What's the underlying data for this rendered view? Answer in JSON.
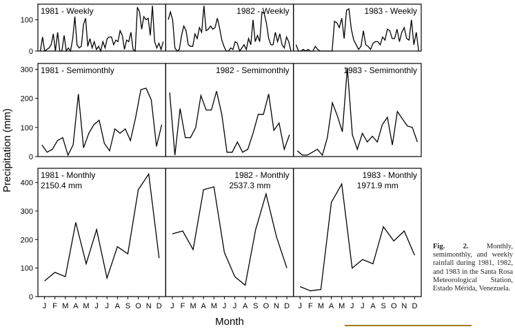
{
  "chart_data": {
    "type": "line",
    "ylabel": "Precipitation (mm)",
    "xlabel": "Month",
    "month_ticks": [
      "J",
      "F",
      "M",
      "A",
      "M",
      "J",
      "J",
      "A",
      "S",
      "O",
      "N",
      "D"
    ],
    "years": [
      "1981",
      "1982",
      "1983"
    ],
    "panels": [
      {
        "id": "weekly",
        "ylim": [
          0,
          150
        ],
        "yticks": [
          0,
          100
        ],
        "labels": [
          "1981 - Weekly",
          "1982 - Weekly",
          "1983 - Weekly"
        ],
        "totals": [
          "",
          "",
          ""
        ],
        "series": [
          {
            "name": "1981",
            "values": [
              0,
              45,
              0,
              5,
              10,
              20,
              55,
              0,
              60,
              0,
              0,
              50,
              0,
              10,
              0,
              40,
              110,
              20,
              10,
              15,
              85,
              105,
              15,
              40,
              10,
              30,
              5,
              15,
              0,
              30,
              10,
              40,
              45,
              45,
              20,
              35,
              30,
              65,
              50,
              5,
              35,
              30,
              60,
              5,
              0,
              140,
              125,
              70,
              110,
              100,
              105,
              50,
              145,
              30,
              10,
              25,
              5,
              30
            ]
          },
          {
            "name": "1982",
            "values": [
              100,
              125,
              100,
              10,
              0,
              5,
              50,
              80,
              65,
              20,
              15,
              15,
              55,
              40,
              75,
              60,
              145,
              65,
              70,
              80,
              70,
              75,
              105,
              75,
              35,
              15,
              0,
              0,
              10,
              5,
              30,
              25,
              0,
              10,
              20,
              5,
              40,
              20,
              100,
              30,
              50,
              30,
              125,
              120,
              90,
              40,
              20,
              20,
              60,
              30,
              55,
              20,
              10,
              45,
              30,
              0
            ]
          },
          {
            "name": "1983",
            "values": [
              20,
              0,
              0,
              5,
              0,
              5,
              0,
              0,
              15,
              5,
              0,
              0,
              0,
              0,
              0,
              0,
              95,
              90,
              75,
              105,
              40,
              130,
              135,
              70,
              35,
              20,
              5,
              15,
              65,
              20,
              15,
              5,
              25,
              30,
              30,
              20,
              45,
              35,
              70,
              65,
              40,
              40,
              70,
              30,
              60,
              75,
              40,
              35,
              100,
              20,
              60,
              0
            ]
          }
        ]
      },
      {
        "id": "semimonthly",
        "ylim": [
          0,
          320
        ],
        "yticks": [
          0,
          100,
          200,
          300
        ],
        "labels": [
          "1981 - Semimonthly",
          "1982 - Semimonthly",
          "1983 - Semimonthly"
        ],
        "totals": [
          "",
          "",
          ""
        ],
        "series": [
          {
            "name": "1981",
            "values": [
              40,
              15,
              25,
              55,
              65,
              5,
              40,
              215,
              30,
              80,
              110,
              125,
              45,
              20,
              95,
              80,
              95,
              55,
              135,
              230,
              235,
              195,
              35,
              110
            ]
          },
          {
            "name": "1982",
            "values": [
              220,
              5,
              165,
              65,
              65,
              100,
              210,
              160,
              160,
              225,
              145,
              15,
              15,
              50,
              15,
              25,
              80,
              145,
              145,
              215,
              90,
              115,
              25,
              75
            ]
          },
          {
            "name": "1983",
            "values": [
              20,
              5,
              5,
              15,
              25,
              5,
              65,
              185,
              140,
              85,
              305,
              75,
              25,
              80,
              50,
              70,
              50,
              110,
              135,
              40,
              155,
              130,
              105,
              100,
              50
            ]
          }
        ]
      },
      {
        "id": "monthly",
        "ylim": [
          0,
          450
        ],
        "yticks": [
          0,
          100,
          200,
          300,
          400
        ],
        "labels": [
          "1981 - Monthly",
          "1982 - Monthly",
          "1983 - Monthly"
        ],
        "totals": [
          "2150.4 mm",
          "2537.3 mm",
          "1971.9 mm"
        ],
        "series": [
          {
            "name": "1981",
            "values": [
              55,
              85,
              70,
              260,
              115,
              235,
              65,
              175,
              150,
              375,
              430,
              135
            ]
          },
          {
            "name": "1982",
            "values": [
              220,
              230,
              165,
              375,
              385,
              155,
              70,
              40,
              235,
              360,
              210,
              100
            ]
          },
          {
            "name": "1983",
            "values": [
              35,
              20,
              25,
              330,
              395,
              100,
              130,
              115,
              245,
              195,
              230,
              145
            ]
          }
        ]
      }
    ]
  },
  "caption": {
    "fig_label": "Fig. 2.",
    "text": "Monthly, semimonthly, and weekly rainfall during 1981, 1982, and 1983 in the Santa Rosa Meteorological Station, Estado Mérida, Venezuela."
  }
}
